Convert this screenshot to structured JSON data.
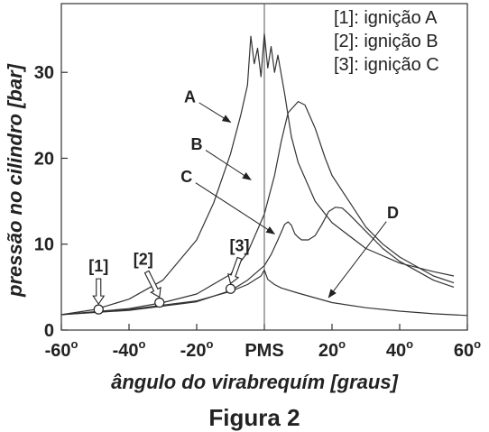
{
  "chart_data": {
    "type": "line",
    "caption": "Figura 2",
    "xlabel": "ângulo do virabrequím [graus]",
    "ylabel": "pressão no cilindro [bar]",
    "xlim": [
      -60,
      60
    ],
    "ylim": [
      0,
      38
    ],
    "x_ticks": [
      {
        "value": -60,
        "label": "-60",
        "sup": "o"
      },
      {
        "value": -40,
        "label": "-40",
        "sup": "o"
      },
      {
        "value": -20,
        "label": "-20",
        "sup": "o"
      },
      {
        "value": 0,
        "label": "PMS",
        "sup": ""
      },
      {
        "value": 20,
        "label": "20",
        "sup": "o"
      },
      {
        "value": 40,
        "label": "40",
        "sup": "o"
      },
      {
        "value": 60,
        "label": "60",
        "sup": "o"
      }
    ],
    "y_ticks": [
      {
        "value": 0,
        "label": "0"
      },
      {
        "value": 10,
        "label": "10"
      },
      {
        "value": 20,
        "label": "20"
      },
      {
        "value": 30,
        "label": "30"
      }
    ],
    "reference_line_x": 0,
    "legend": {
      "position": "top-right",
      "entries": [
        "[1]: ignição A",
        "[2]: ignição B",
        "[3]: ignição C"
      ]
    },
    "series": [
      {
        "name": "A",
        "points": [
          [
            -60,
            1.8
          ],
          [
            -50,
            2.4
          ],
          [
            -40,
            3.6
          ],
          [
            -30,
            5.8
          ],
          [
            -20,
            10.5
          ],
          [
            -15,
            14.8
          ],
          [
            -10,
            20.5
          ],
          [
            -7,
            25
          ],
          [
            -5,
            28.5
          ],
          [
            -4,
            34.2
          ],
          [
            -3,
            31
          ],
          [
            -2,
            32.8
          ],
          [
            -1,
            29.5
          ],
          [
            0,
            34.5
          ],
          [
            1,
            30.5
          ],
          [
            2,
            33
          ],
          [
            3,
            30
          ],
          [
            4,
            32
          ],
          [
            6,
            27.5
          ],
          [
            8,
            22.5
          ],
          [
            10,
            19.5
          ],
          [
            15,
            15
          ],
          [
            20,
            12.5
          ],
          [
            30,
            9.5
          ],
          [
            40,
            7.8
          ],
          [
            50,
            6.8
          ],
          [
            56,
            6.3
          ]
        ]
      },
      {
        "name": "B",
        "points": [
          [
            -60,
            1.8
          ],
          [
            -40,
            2.5
          ],
          [
            -30,
            3.2
          ],
          [
            -20,
            4.2
          ],
          [
            -10,
            6.5
          ],
          [
            -5,
            9
          ],
          [
            0,
            13.5
          ],
          [
            3,
            18
          ],
          [
            5,
            22
          ],
          [
            7,
            25.3
          ],
          [
            10,
            26.6
          ],
          [
            12,
            26.2
          ],
          [
            15,
            23.5
          ],
          [
            18,
            20
          ],
          [
            20,
            18
          ],
          [
            25,
            15
          ],
          [
            30,
            12
          ],
          [
            35,
            10
          ],
          [
            40,
            8.5
          ],
          [
            50,
            6.3
          ],
          [
            56,
            5.5
          ]
        ]
      },
      {
        "name": "C",
        "points": [
          [
            -60,
            1.8
          ],
          [
            -40,
            2.3
          ],
          [
            -20,
            3.3
          ],
          [
            -10,
            4.6
          ],
          [
            -5,
            5.8
          ],
          [
            0,
            7.5
          ],
          [
            2,
            8.8
          ],
          [
            4,
            10.5
          ],
          [
            6,
            12.3
          ],
          [
            7,
            12.6
          ],
          [
            8,
            12.2
          ],
          [
            9,
            11.2
          ],
          [
            10,
            10.8
          ],
          [
            11,
            10.5
          ],
          [
            13,
            10.5
          ],
          [
            15,
            11
          ],
          [
            17,
            12.3
          ],
          [
            19,
            13.8
          ],
          [
            21,
            14.3
          ],
          [
            23,
            14.2
          ],
          [
            25,
            13.5
          ],
          [
            30,
            11.5
          ],
          [
            35,
            9.5
          ],
          [
            40,
            8
          ],
          [
            50,
            5.8
          ],
          [
            56,
            5
          ]
        ]
      },
      {
        "name": "D",
        "points": [
          [
            -60,
            1.8
          ],
          [
            -40,
            2.4
          ],
          [
            -20,
            3.4
          ],
          [
            -10,
            4.5
          ],
          [
            -5,
            5.3
          ],
          [
            -1,
            6.3
          ],
          [
            0,
            7
          ],
          [
            1,
            5.9
          ],
          [
            3,
            5.3
          ],
          [
            5,
            4.9
          ],
          [
            10,
            4.3
          ],
          [
            20,
            3.2
          ],
          [
            30,
            2.6
          ],
          [
            40,
            2.2
          ],
          [
            50,
            1.9
          ],
          [
            60,
            1.7
          ]
        ]
      }
    ],
    "ignition_points": [
      {
        "label": "[1]",
        "x": -49,
        "y": 2.4
      },
      {
        "label": "[2]",
        "x": -31,
        "y": 3.2
      },
      {
        "label": "[3]",
        "x": -10,
        "y": 4.8
      }
    ],
    "curve_labels": [
      {
        "label": "A",
        "text_at": [
          -22,
          26.5
        ],
        "arrow_to": [
          -10,
          24.2
        ]
      },
      {
        "label": "B",
        "text_at": [
          -20,
          21
        ],
        "arrow_to": [
          -4,
          17.5
        ]
      },
      {
        "label": "C",
        "text_at": [
          -23,
          17.2
        ],
        "arrow_to": [
          3,
          11.2
        ]
      },
      {
        "label": "D",
        "text_at": [
          38,
          13
        ],
        "arrow_to": [
          19,
          3.8
        ]
      }
    ]
  }
}
